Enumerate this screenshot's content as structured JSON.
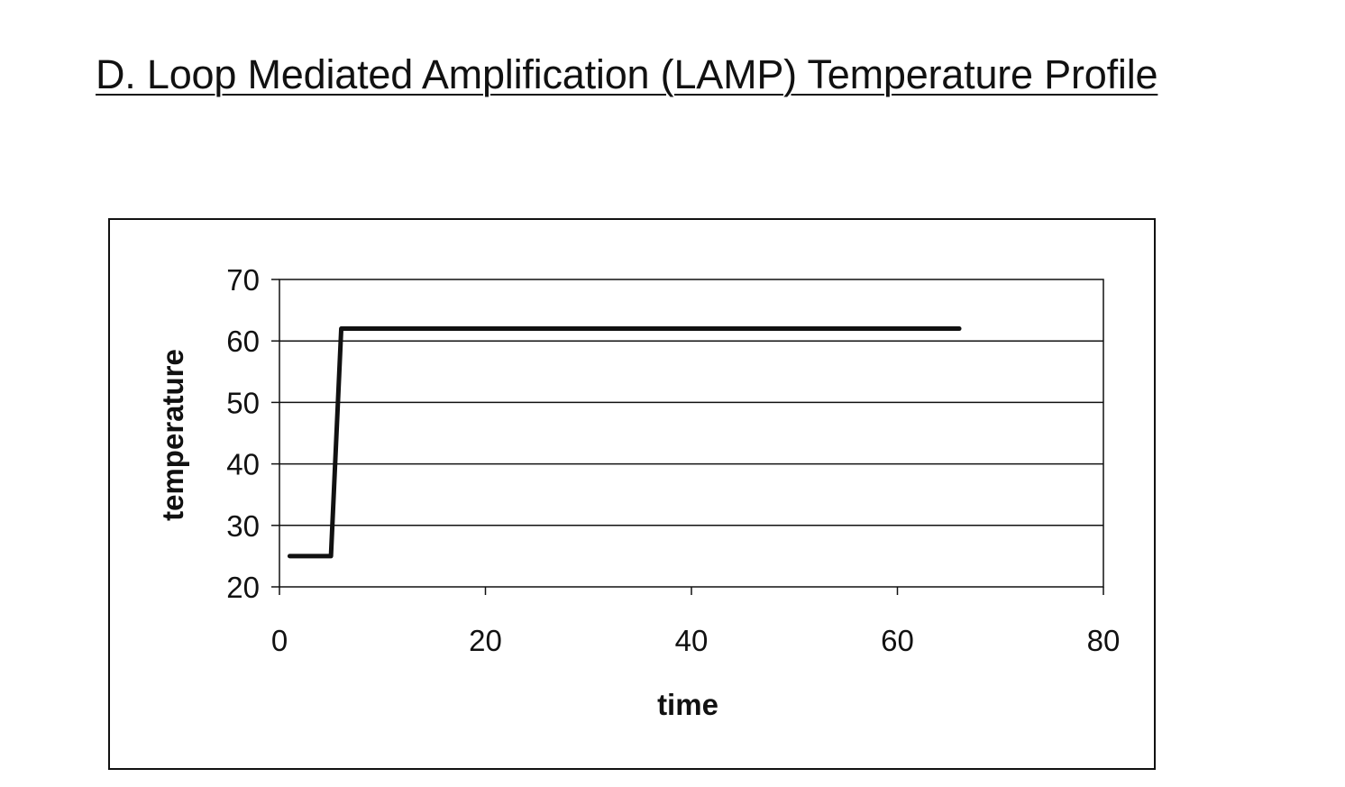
{
  "page": {
    "title": "D.  Loop Mediated Amplification (LAMP) Temperature Profile"
  },
  "chart_data": {
    "type": "line",
    "title": "",
    "xlabel": "time",
    "ylabel": "temperature",
    "xlim": [
      0,
      80
    ],
    "ylim": [
      20,
      70
    ],
    "x_ticks": [
      0,
      20,
      40,
      60,
      80
    ],
    "y_ticks": [
      20,
      30,
      40,
      50,
      60,
      70
    ],
    "grid": "horizontal",
    "legend": "none",
    "line_color": "#111111",
    "series": [
      {
        "x": [
          1,
          5,
          6,
          66
        ],
        "y": [
          25,
          25,
          62,
          62
        ]
      }
    ]
  }
}
